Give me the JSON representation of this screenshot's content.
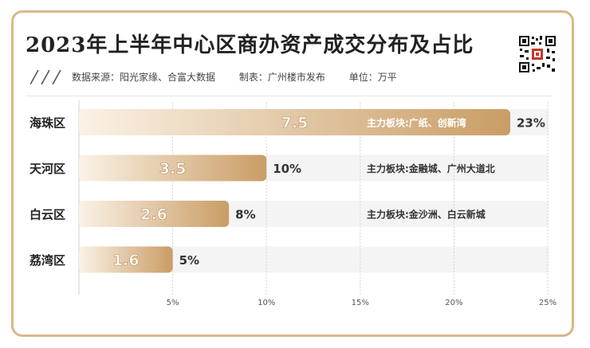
{
  "title": "2023年上半年中心区商办资产成交分布及占比",
  "source": "数据来源：阳光家缘、合富大数据",
  "author": "制表：广州楼市发布",
  "unit": "单位：万平",
  "colors": {
    "bar_start": "#fbf2e6",
    "bar_end": "#c99d65",
    "border": "#d9b78a",
    "text": "#222222"
  },
  "icons": [
    "qr-code-icon",
    "slash-decoration"
  ],
  "chart_data": {
    "type": "bar",
    "orientation": "horizontal",
    "categories": [
      "海珠区",
      "天河区",
      "白云区",
      "荔湾区"
    ],
    "values": [
      7.5,
      3.5,
      2.6,
      1.6
    ],
    "value_labels": [
      "7.5",
      "3.5",
      "2.6",
      "1.6"
    ],
    "shares": [
      23,
      10,
      8,
      5
    ],
    "share_labels": [
      "23%",
      "10%",
      "8%",
      "5%"
    ],
    "notes": [
      "主力板块:广纸、创新湾",
      "主力板块:金融城、广州大道北",
      "主力板块:金沙洲、白云新城",
      ""
    ],
    "x_axis": {
      "ticks": [
        5,
        10,
        15,
        20,
        25
      ],
      "tick_labels": [
        "5%",
        "10%",
        "15%",
        "20%",
        "25%"
      ],
      "range": [
        0,
        25
      ]
    },
    "grid": true,
    "xlabel": "",
    "ylabel": ""
  }
}
